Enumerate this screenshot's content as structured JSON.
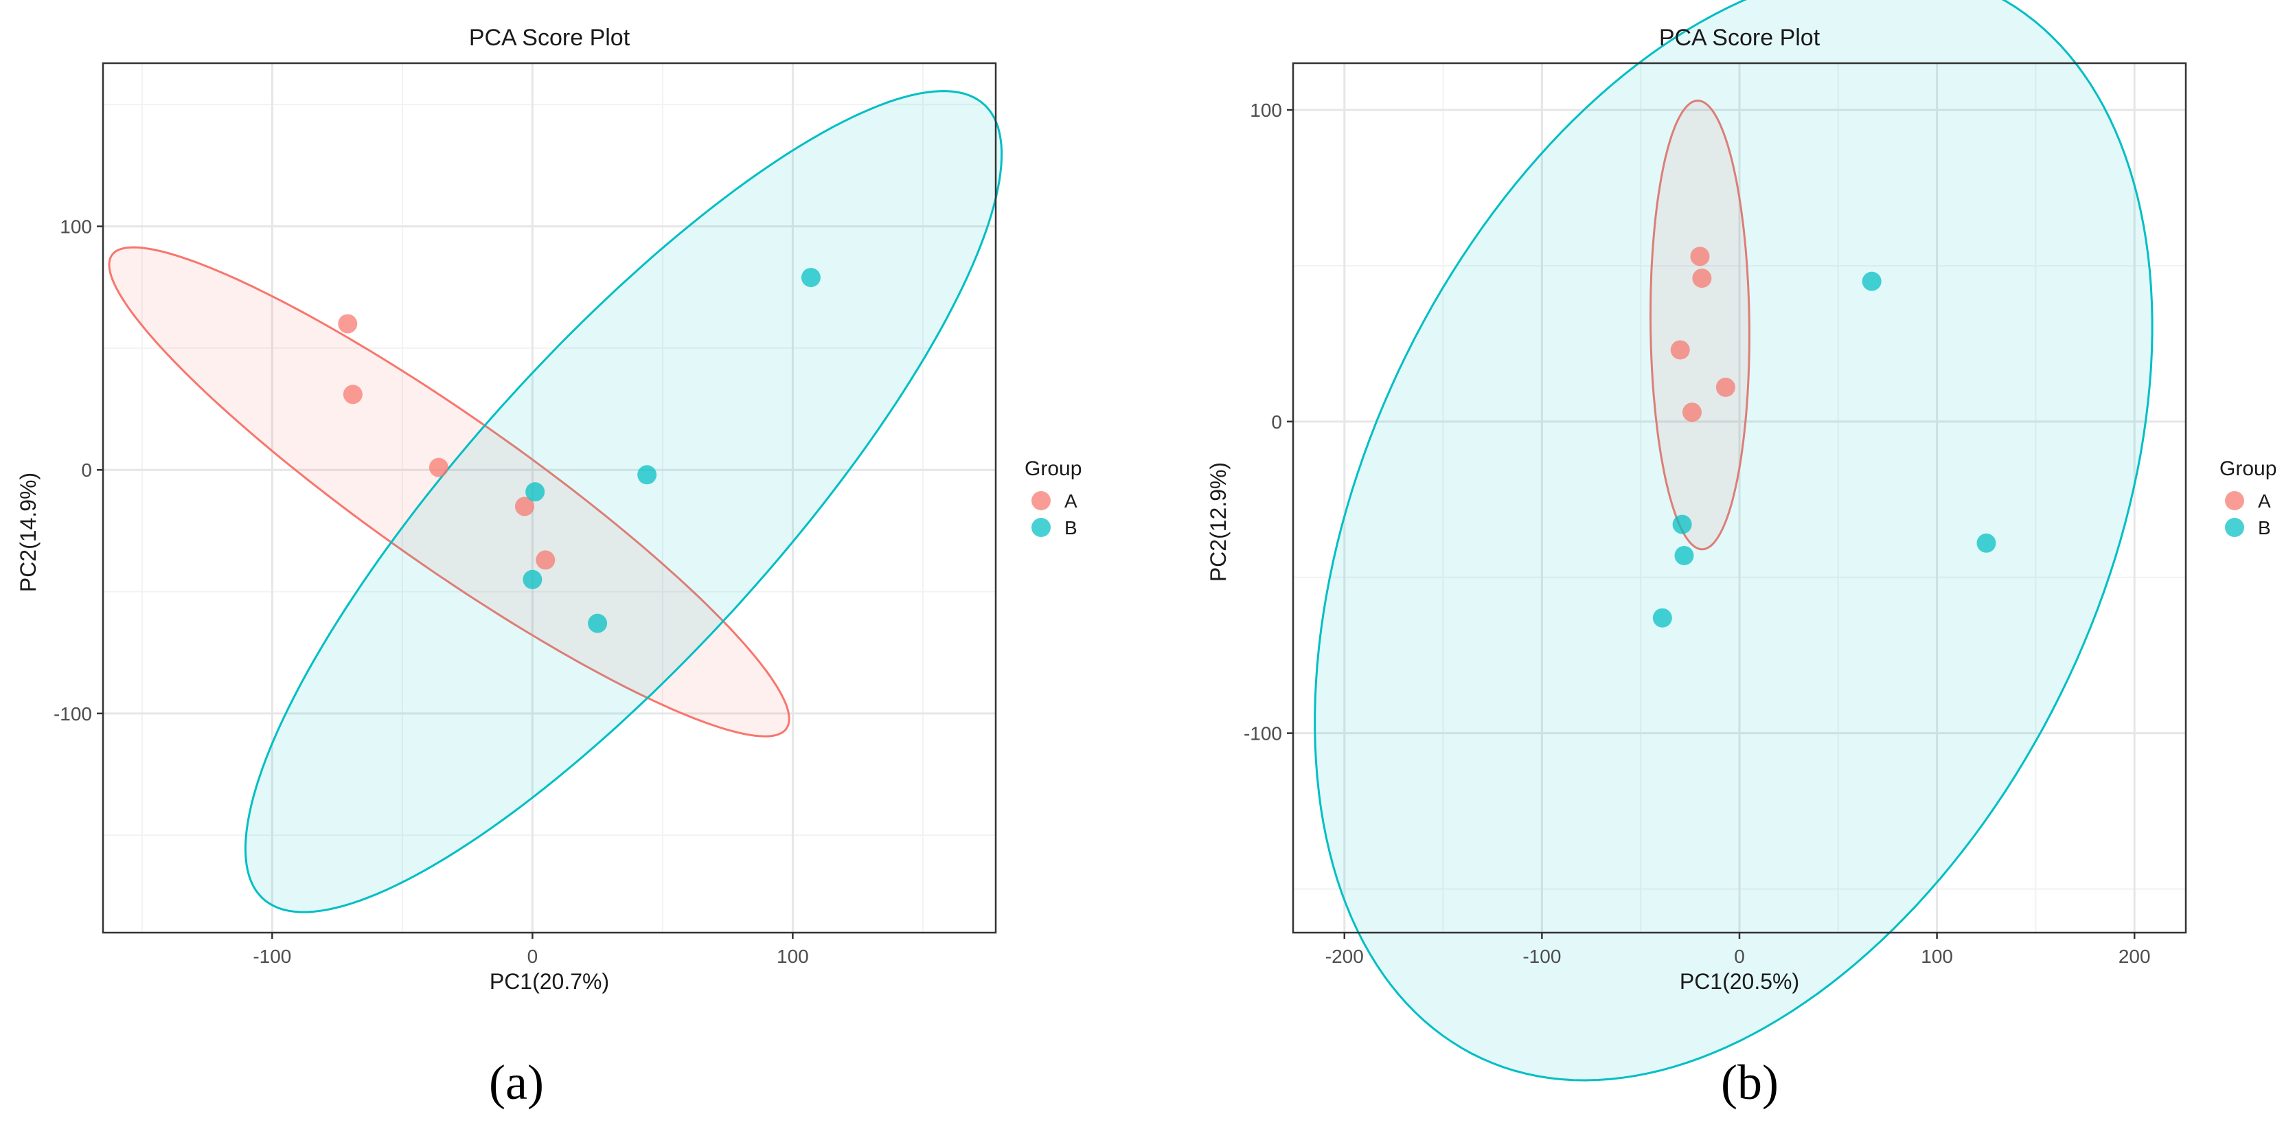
{
  "colors": {
    "A": "#F8766D",
    "B": "#00BFC4"
  },
  "chart_data": [
    {
      "panel_label": "(a)",
      "type": "scatter",
      "title": "PCA Score Plot",
      "xlabel": "PC1(20.7%)",
      "ylabel": "PC2(14.9%)",
      "xlim": [
        -165,
        178
      ],
      "ylim": [
        -190,
        167
      ],
      "xticks": [
        -100,
        0,
        100
      ],
      "xtick_labels": [
        "-100",
        "0",
        "100"
      ],
      "yticks": [
        -100,
        0,
        100
      ],
      "ytick_labels": [
        "-100",
        "0",
        "100"
      ],
      "minor_x": [
        -150,
        -50,
        50,
        150
      ],
      "minor_y": [
        -150,
        -50,
        50,
        150
      ],
      "legend": {
        "title": "Group",
        "position": "right",
        "entries": [
          "A",
          "B"
        ]
      },
      "series": [
        {
          "name": "A",
          "x": [
            -71,
            -69,
            -36,
            -3,
            5
          ],
          "y": [
            60,
            31,
            1,
            -15,
            -37
          ]
        },
        {
          "name": "B",
          "x": [
            107,
            44,
            1,
            0,
            25
          ],
          "y": [
            79,
            -2,
            -9,
            -45,
            -63
          ]
        }
      ],
      "ellipses": [
        {
          "group": "A",
          "cx": -32,
          "cy": -9,
          "major_semi_axis": 162,
          "minor_semi_axis": 30,
          "angle_deg": -37
        },
        {
          "group": "B",
          "cx": 35,
          "cy": -13,
          "major_semi_axis": 214,
          "minor_semi_axis": 61,
          "angle_deg": 50
        }
      ]
    },
    {
      "panel_label": "(b)",
      "type": "scatter",
      "title": "PCA Score Plot",
      "xlabel": "PC1(20.5%)",
      "ylabel": "PC2(12.9%)",
      "xlim": [
        -226,
        226
      ],
      "ylim": [
        -164,
        115
      ],
      "xticks": [
        -200,
        -100,
        0,
        100,
        200
      ],
      "xtick_labels": [
        "-200",
        "-100",
        "0",
        "100",
        "200"
      ],
      "yticks": [
        -100,
        0,
        100
      ],
      "ytick_labels": [
        "-100",
        "0",
        "100"
      ],
      "minor_x": [
        -150,
        -50,
        50,
        150
      ],
      "minor_y": [
        -150,
        -50,
        50
      ],
      "legend": {
        "title": "Group",
        "position": "right",
        "entries": [
          "A",
          "B"
        ]
      },
      "series": [
        {
          "name": "A",
          "x": [
            -20,
            -19,
            -30,
            -7,
            -24
          ],
          "y": [
            53,
            46,
            23,
            11,
            3
          ]
        },
        {
          "name": "B",
          "x": [
            67,
            -29,
            -28,
            -39,
            125
          ],
          "y": [
            45,
            -33,
            -43,
            -63,
            -39
          ]
        }
      ],
      "ellipses": [
        {
          "group": "A",
          "cx": -20,
          "cy": 31,
          "major_semi_axis": 72,
          "minor_semi_axis": 25,
          "angle_deg": 91
        },
        {
          "group": "B",
          "cx": -3,
          "cy": -33,
          "major_semi_axis": 231,
          "minor_semi_axis": 153,
          "angle_deg": 32
        }
      ]
    }
  ]
}
